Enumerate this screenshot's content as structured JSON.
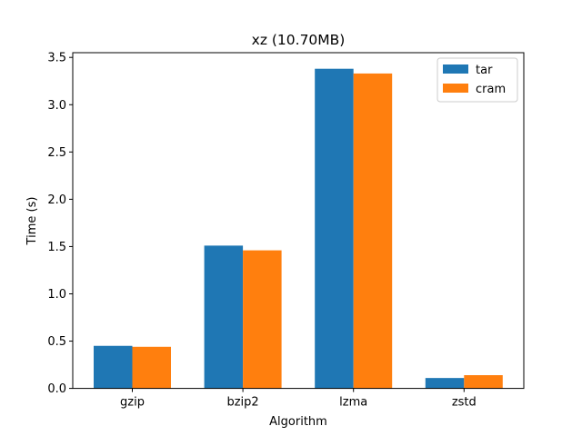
{
  "chart_data": {
    "type": "bar",
    "title": "xz (10.70MB)",
    "xlabel": "Algorithm",
    "ylabel": "Time (s)",
    "categories": [
      "gzip",
      "bzip2",
      "lzma",
      "zstd"
    ],
    "series": [
      {
        "name": "tar",
        "values": [
          0.45,
          1.51,
          3.38,
          0.11
        ],
        "color": "#1f77b4"
      },
      {
        "name": "cram",
        "values": [
          0.44,
          1.46,
          3.33,
          0.14
        ],
        "color": "#ff7f0e"
      }
    ],
    "ylim": [
      0,
      3.55
    ],
    "yticks": [
      "0.0",
      "0.5",
      "1.0",
      "1.5",
      "2.0",
      "2.5",
      "3.0",
      "3.5"
    ],
    "grid": false,
    "legend_position": "top-right"
  }
}
